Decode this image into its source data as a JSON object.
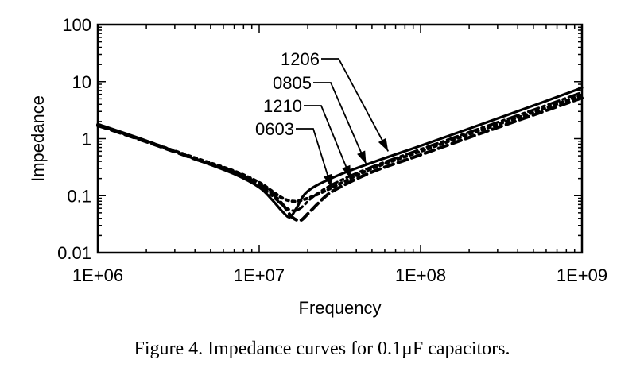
{
  "caption": "Figure 4. Impedance curves for 0.1µF capacitors.",
  "chart_data": {
    "type": "line",
    "title": "",
    "xlabel": "Frequency",
    "ylabel": "Impedance",
    "xscale": "log",
    "yscale": "log",
    "xlim": [
      1000000,
      1000000000
    ],
    "ylim": [
      0.01,
      100
    ],
    "x_ticks": [
      1000000,
      10000000,
      100000000,
      1000000000
    ],
    "x_tick_labels": [
      "1E+06",
      "1E+07",
      "1E+08",
      "1E+09"
    ],
    "y_ticks": [
      0.01,
      0.1,
      1,
      10,
      100
    ],
    "y_tick_labels": [
      "0.01",
      "0.1",
      "1",
      "10",
      "100"
    ],
    "grid": false,
    "series": [
      {
        "name": "1206",
        "style": "solid",
        "x": [
          1000000,
          2000000,
          4000000,
          7000000,
          10000000,
          12000000,
          14000000,
          15500000,
          17000000,
          20000000,
          30000000,
          50000000,
          100000000,
          200000000,
          500000000,
          1000000000
        ],
        "y": [
          1.8,
          0.92,
          0.44,
          0.24,
          0.14,
          0.085,
          0.052,
          0.042,
          0.06,
          0.12,
          0.22,
          0.38,
          0.75,
          1.5,
          3.8,
          7.8
        ]
      },
      {
        "name": "0805",
        "style": "dash-dot",
        "x": [
          1000000,
          2000000,
          4000000,
          7000000,
          10000000,
          12000000,
          14000000,
          16000000,
          18000000,
          22000000,
          30000000,
          50000000,
          100000000,
          200000000,
          500000000,
          1000000000
        ],
        "y": [
          1.75,
          0.9,
          0.45,
          0.25,
          0.15,
          0.1,
          0.068,
          0.055,
          0.06,
          0.1,
          0.17,
          0.32,
          0.65,
          1.3,
          3.2,
          6.5
        ]
      },
      {
        "name": "1210",
        "style": "dashed",
        "x": [
          1000000,
          2000000,
          4000000,
          7000000,
          10000000,
          12000000,
          14000000,
          16000000,
          18000000,
          20000000,
          25000000,
          30000000,
          50000000,
          100000000,
          200000000,
          500000000,
          1000000000
        ],
        "y": [
          1.7,
          0.88,
          0.44,
          0.26,
          0.16,
          0.11,
          0.07,
          0.042,
          0.037,
          0.048,
          0.09,
          0.13,
          0.26,
          0.52,
          1.05,
          2.6,
          5.2
        ]
      },
      {
        "name": "0603",
        "style": "dotted",
        "x": [
          1000000,
          2000000,
          4000000,
          7000000,
          10000000,
          12000000,
          14000000,
          16000000,
          18000000,
          22000000,
          30000000,
          50000000,
          100000000,
          200000000,
          500000000,
          1000000000
        ],
        "y": [
          1.75,
          0.9,
          0.46,
          0.27,
          0.17,
          0.12,
          0.09,
          0.08,
          0.082,
          0.1,
          0.15,
          0.3,
          0.6,
          1.2,
          2.9,
          5.8
        ]
      }
    ],
    "annotations": [
      {
        "text": "1206",
        "series": "1206",
        "target_x": 63000000,
        "target_y": 0.6
      },
      {
        "text": "0805",
        "series": "0805",
        "target_x": 46000000,
        "target_y": 0.36
      },
      {
        "text": "1210",
        "series": "1210",
        "target_x": 37000000,
        "target_y": 0.2
      },
      {
        "text": "0603",
        "series": "0603",
        "target_x": 28000000,
        "target_y": 0.14
      }
    ]
  }
}
